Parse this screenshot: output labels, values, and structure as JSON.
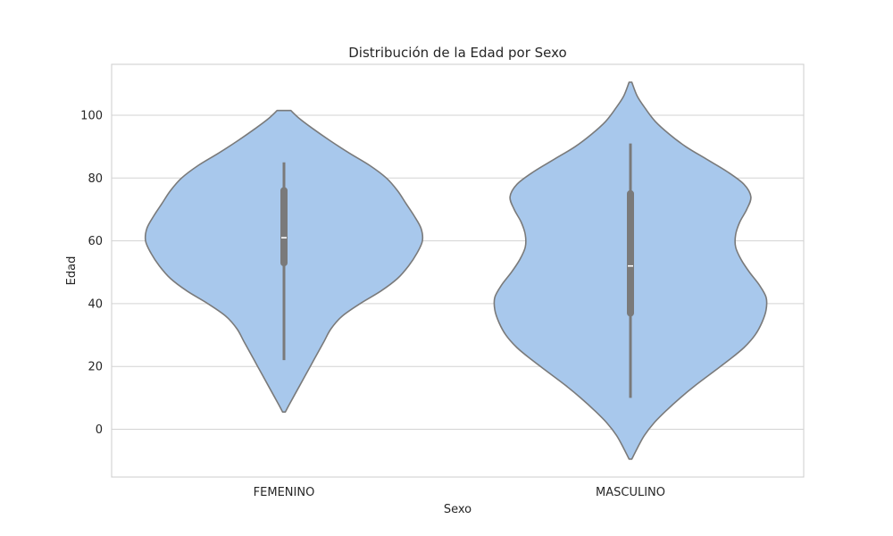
{
  "chart_data": {
    "type": "violin",
    "title": "Distribución de la Edad por Sexo",
    "xlabel": "Sexo",
    "ylabel": "Edad",
    "ylim": [
      -15,
      116
    ],
    "yticks": [
      0,
      20,
      40,
      60,
      80,
      100
    ],
    "grid": true,
    "colors": {
      "fill": "#a8c8ec",
      "edge": "#7a7a7a",
      "box": "#7a7a7a",
      "median": "#ffffff",
      "grid": "#d3d3d3",
      "frame": "#cccccc"
    },
    "categories": [
      "FEMENINO",
      "MASCULINO"
    ],
    "violins": [
      {
        "category": "FEMENINO",
        "ymin": 5.5,
        "ymax": 101.5,
        "whisker_low": 22,
        "q1": 53,
        "median": 61,
        "q3": 76,
        "whisker_high": 85,
        "density_profile": [
          [
            5.5,
            0.01
          ],
          [
            8,
            0.04
          ],
          [
            12,
            0.09
          ],
          [
            16,
            0.14
          ],
          [
            20,
            0.19
          ],
          [
            24,
            0.24
          ],
          [
            28,
            0.29
          ],
          [
            32,
            0.34
          ],
          [
            36,
            0.42
          ],
          [
            40,
            0.55
          ],
          [
            44,
            0.7
          ],
          [
            48,
            0.82
          ],
          [
            52,
            0.9
          ],
          [
            56,
            0.96
          ],
          [
            60,
            1.0
          ],
          [
            64,
            0.99
          ],
          [
            68,
            0.94
          ],
          [
            72,
            0.88
          ],
          [
            76,
            0.82
          ],
          [
            80,
            0.74
          ],
          [
            84,
            0.62
          ],
          [
            88,
            0.47
          ],
          [
            92,
            0.33
          ],
          [
            96,
            0.2
          ],
          [
            99,
            0.11
          ],
          [
            101.5,
            0.05
          ]
        ]
      },
      {
        "category": "MASCULINO",
        "ymin": -9.5,
        "ymax": 110.5,
        "whisker_low": 10,
        "q1": 37,
        "median": 52,
        "q3": 75,
        "whisker_high": 91,
        "density_profile": [
          [
            -9.5,
            0.01
          ],
          [
            -6,
            0.05
          ],
          [
            -2,
            0.1
          ],
          [
            2,
            0.17
          ],
          [
            6,
            0.26
          ],
          [
            10,
            0.36
          ],
          [
            14,
            0.47
          ],
          [
            18,
            0.59
          ],
          [
            22,
            0.71
          ],
          [
            26,
            0.82
          ],
          [
            30,
            0.9
          ],
          [
            34,
            0.95
          ],
          [
            38,
            0.98
          ],
          [
            42,
            0.98
          ],
          [
            46,
            0.93
          ],
          [
            50,
            0.86
          ],
          [
            54,
            0.8
          ],
          [
            58,
            0.76
          ],
          [
            62,
            0.76
          ],
          [
            66,
            0.79
          ],
          [
            70,
            0.84
          ],
          [
            74,
            0.87
          ],
          [
            78,
            0.82
          ],
          [
            82,
            0.7
          ],
          [
            86,
            0.55
          ],
          [
            90,
            0.4
          ],
          [
            94,
            0.28
          ],
          [
            98,
            0.18
          ],
          [
            102,
            0.11
          ],
          [
            106,
            0.05
          ],
          [
            110.5,
            0.01
          ]
        ]
      }
    ]
  }
}
